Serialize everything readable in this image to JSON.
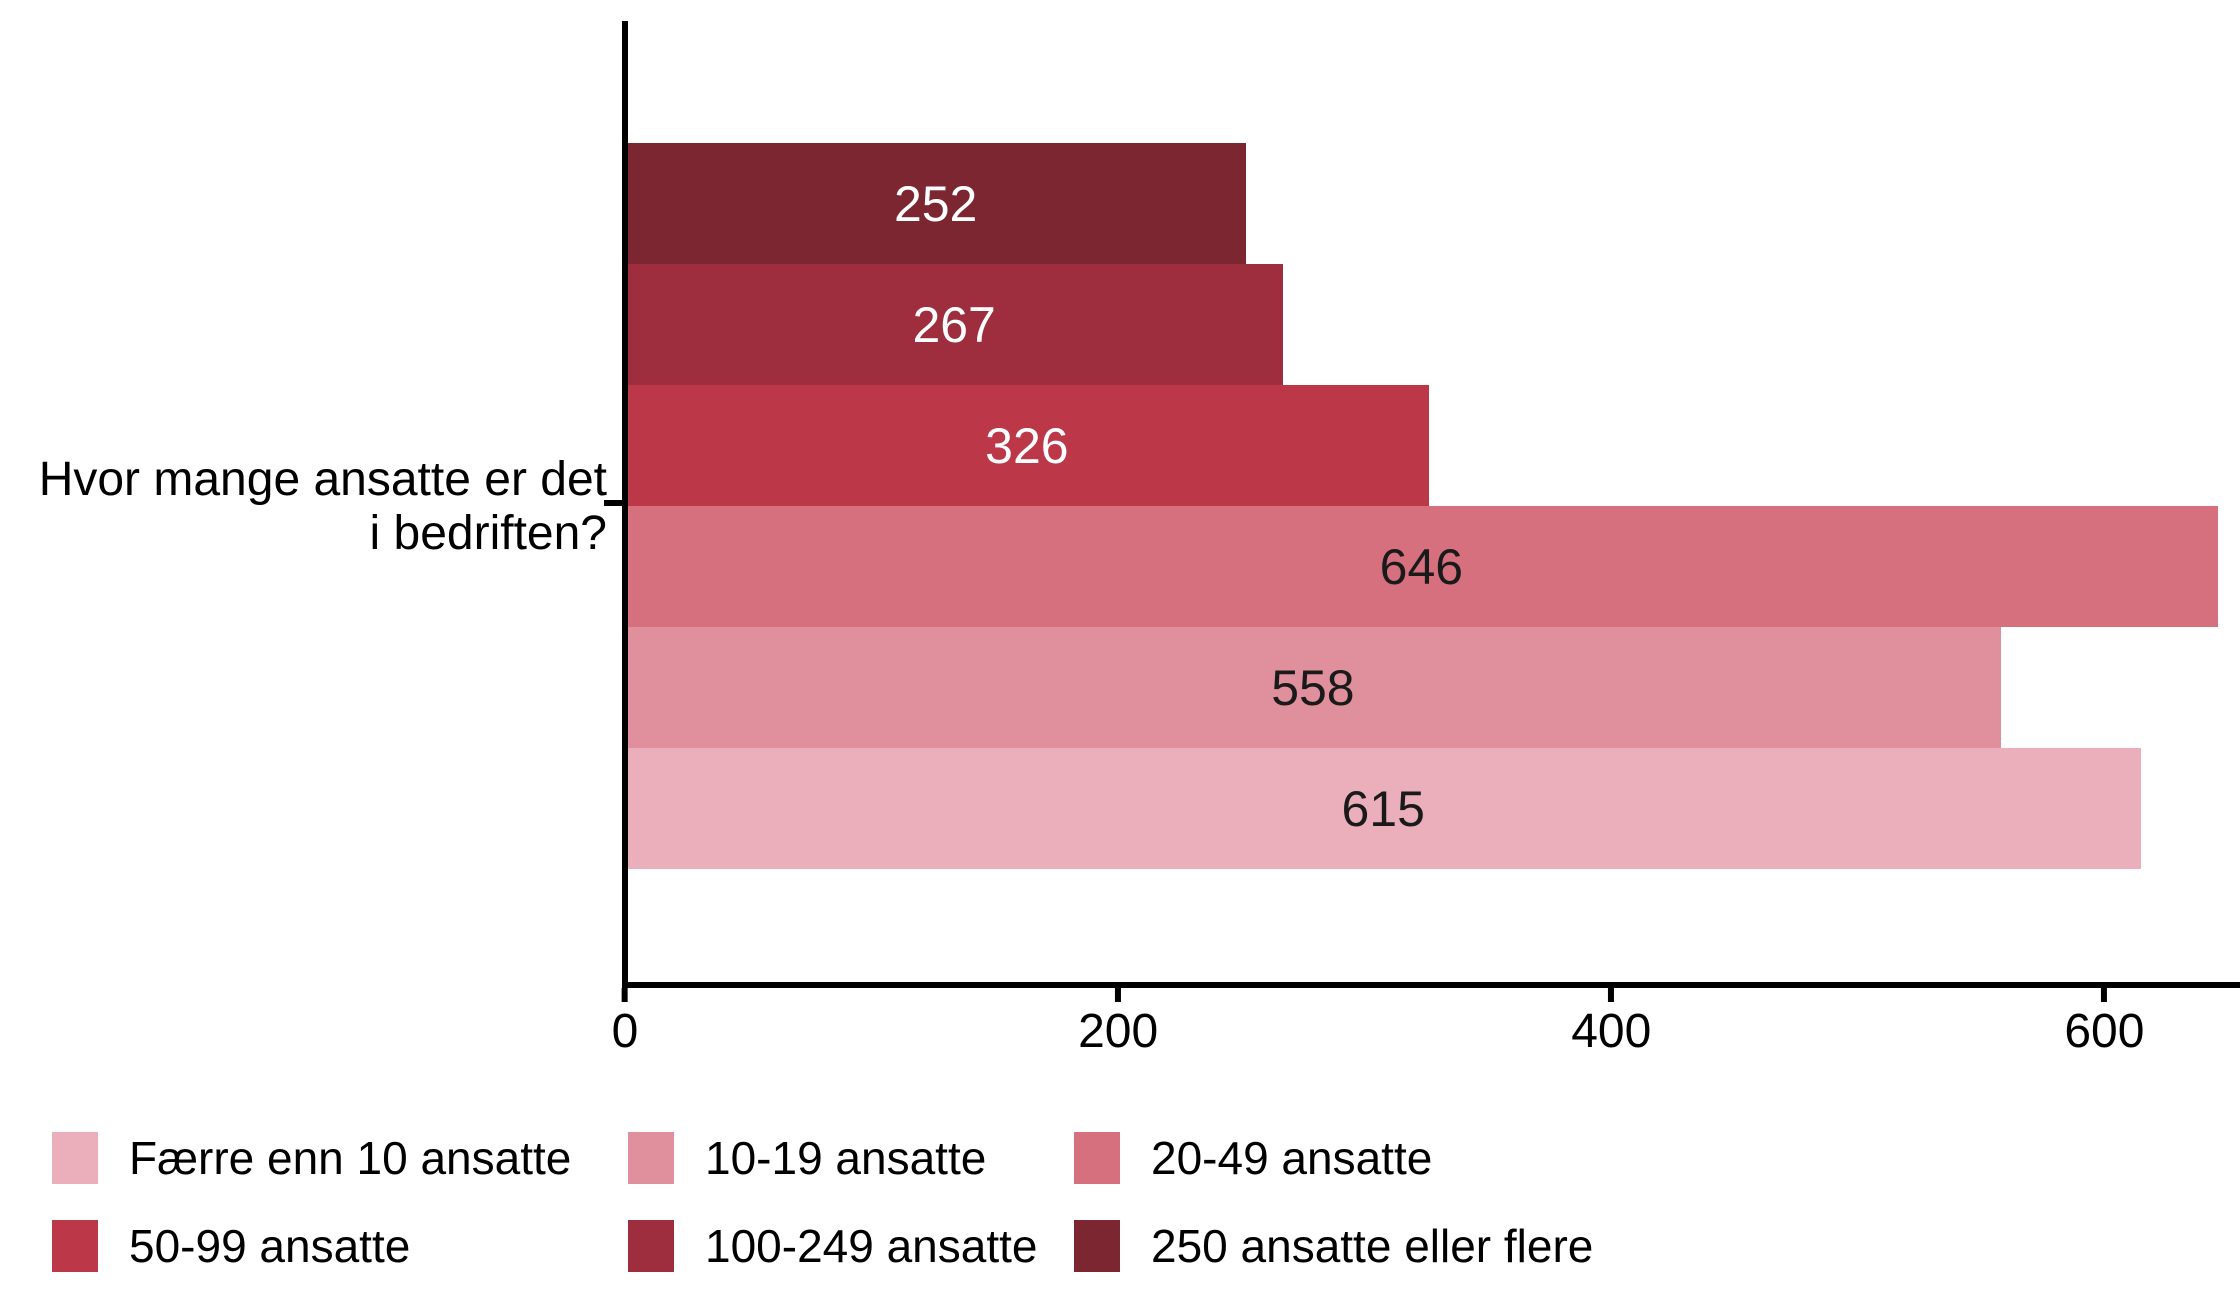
{
  "chart_data": {
    "type": "bar",
    "orientation": "horizontal",
    "title": "",
    "xlabel": "",
    "ylabel": "Hvor mange ansatte er det i bedriften?",
    "ylabel_lines": [
      "Hvor mange ansatte er det",
      "i bedriften?"
    ],
    "xlim": [
      0,
      655
    ],
    "grid": "off",
    "legend_position": "bottom",
    "x_ticks": [
      {
        "value": 0,
        "label": "0"
      },
      {
        "value": 200,
        "label": "200"
      },
      {
        "value": 400,
        "label": "400"
      },
      {
        "value": 600,
        "label": "600"
      }
    ],
    "bars": [
      {
        "category": "250 ansatte eller flere",
        "value": 252,
        "color": "#7C2631",
        "text_color": "#FFFFFF"
      },
      {
        "category": "100-249 ansatte",
        "value": 267,
        "color": "#9E2E3D",
        "text_color": "#FFFFFF"
      },
      {
        "category": "50-99 ansatte",
        "value": 326,
        "color": "#BC3849",
        "text_color": "#FFFFFF"
      },
      {
        "category": "20-49 ansatte",
        "value": 646,
        "color": "#D6707F",
        "text_color": "#1A1A1A"
      },
      {
        "category": "10-19 ansatte",
        "value": 558,
        "color": "#E0909C",
        "text_color": "#1A1A1A"
      },
      {
        "category": "Færre enn 10 ansatte",
        "value": 615,
        "color": "#EAAFBA",
        "text_color": "#1A1A1A"
      }
    ],
    "legend": [
      {
        "label": "Færre enn 10 ansatte",
        "color": "#EAAFBA"
      },
      {
        "label": "10-19 ansatte",
        "color": "#E0909C"
      },
      {
        "label": "20-49 ansatte",
        "color": "#D6707F"
      },
      {
        "label": "50-99 ansatte",
        "color": "#BC3849"
      },
      {
        "label": "100-249 ansatte",
        "color": "#9E2E3D"
      },
      {
        "label": "250 ansatte eller flere",
        "color": "#7C2631"
      }
    ]
  }
}
